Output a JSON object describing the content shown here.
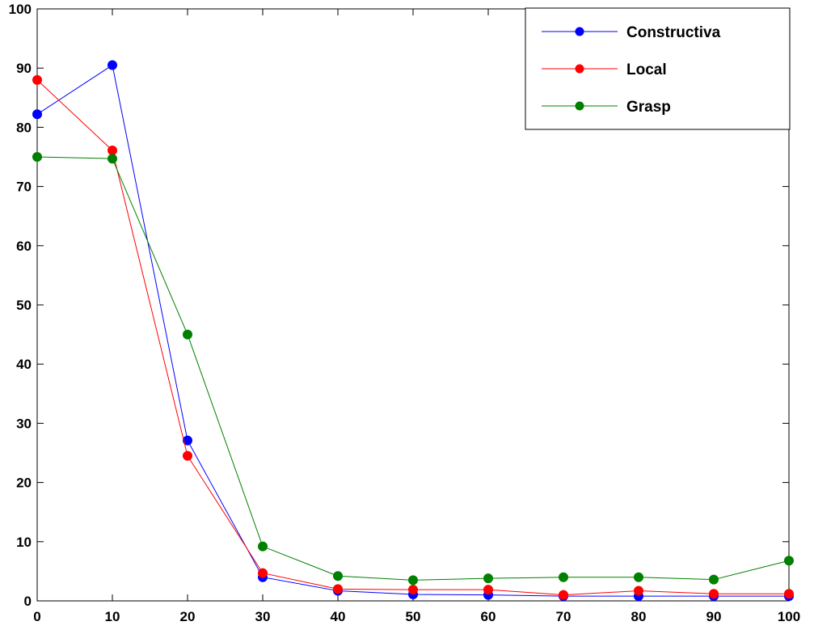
{
  "chart_data": {
    "type": "line",
    "title": "",
    "xlabel": "",
    "ylabel": "",
    "xlim": [
      0,
      100
    ],
    "ylim": [
      0,
      100
    ],
    "x_ticks": [
      0,
      10,
      20,
      30,
      40,
      50,
      60,
      70,
      80,
      90,
      100
    ],
    "y_ticks": [
      0,
      10,
      20,
      30,
      40,
      50,
      60,
      70,
      80,
      90,
      100
    ],
    "x": [
      0,
      10,
      20,
      30,
      40,
      50,
      60,
      70,
      80,
      90,
      100
    ],
    "grid": false,
    "legend_position": "top-right",
    "series": [
      {
        "name": "Constructiva",
        "color": "#0000ff",
        "marker": "circle",
        "values": [
          82.2,
          90.5,
          27.1,
          4.0,
          1.7,
          1.1,
          1.0,
          0.8,
          0.8,
          0.8,
          0.8
        ]
      },
      {
        "name": "Local",
        "color": "#ff0000",
        "marker": "circle",
        "values": [
          88.0,
          76.1,
          24.5,
          4.7,
          2.0,
          1.9,
          1.9,
          1.0,
          1.7,
          1.2,
          1.2
        ]
      },
      {
        "name": "Grasp",
        "color": "#008000",
        "marker": "circle",
        "values": [
          75.0,
          74.7,
          45.0,
          9.2,
          4.2,
          3.5,
          3.8,
          4.0,
          4.0,
          3.6,
          6.8
        ]
      }
    ]
  }
}
